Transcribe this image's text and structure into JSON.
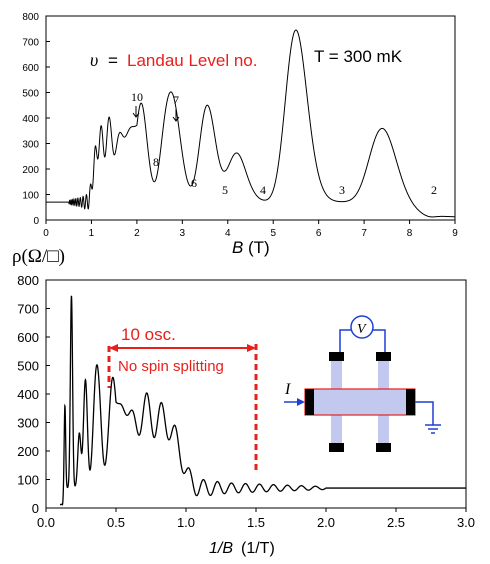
{
  "colors": {
    "curve": "#000000",
    "annotation_red": "#e8201c",
    "hallbar_fill": "#c3c8ee",
    "hallbar_outline": "#e8201c",
    "contact": "#000000",
    "wire_blue": "#1f3fd6"
  },
  "chart_data": [
    {
      "type": "line",
      "name": "upper-panel",
      "xlabel": "B (T)",
      "xlabel_var": "B",
      "xlabel_unit": "(T)",
      "ylabel": "ρ(Ω/□)",
      "xlim": [
        0,
        9
      ],
      "ylim": [
        0,
        800
      ],
      "xticks": [
        "0",
        "1",
        "2",
        "3",
        "4",
        "5",
        "6",
        "7",
        "8",
        "9"
      ],
      "yticks": [
        "0",
        "100",
        "200",
        "300",
        "400",
        "500",
        "600",
        "700",
        "800"
      ],
      "annotations": {
        "nu_symbol": "υ",
        "equals": "=",
        "landau_label": "Landau Level no.",
        "temperature": "T = 300 mK",
        "level_labels": [
          {
            "text": "10",
            "arrow": true
          },
          {
            "text": "7",
            "arrow": true
          },
          {
            "text": "8"
          },
          {
            "text": "6"
          },
          {
            "text": "5"
          },
          {
            "text": "4"
          },
          {
            "text": "3"
          },
          {
            "text": "2"
          }
        ]
      },
      "peaks": [
        {
          "B": 5.5,
          "rho": 695
        },
        {
          "B": 7.4,
          "rho": 310
        },
        {
          "B": 4.2,
          "rho": 210
        },
        {
          "B": 3.55,
          "rho": 400
        },
        {
          "B": 2.85,
          "rho": 275
        },
        {
          "B": 2.65,
          "rho": 310
        },
        {
          "B": 2.1,
          "rho": 400
        },
        {
          "B": 1.75,
          "rho": 345
        },
        {
          "B": 1.45,
          "rho": 280
        },
        {
          "B": 1.25,
          "rho": 215
        },
        {
          "B": 1.1,
          "rho": 185
        }
      ]
    },
    {
      "type": "line",
      "name": "lower-panel",
      "xlabel": "1/B (1/T)",
      "xlabel_var": "1/B",
      "xlabel_unit": "(1/T)",
      "xlim": [
        0,
        3.0
      ],
      "ylim": [
        0,
        800
      ],
      "xticks": [
        "0.0",
        "0.5",
        "1.0",
        "1.5",
        "2.0",
        "2.5",
        "3.0"
      ],
      "yticks": [
        "0",
        "100",
        "200",
        "300",
        "400",
        "500",
        "600",
        "700",
        "800"
      ],
      "annotations": {
        "osc_count": "10 osc.",
        "spin_note": "No spin splitting",
        "current_label": "I",
        "voltmeter_label": "V",
        "bracket_from_x": 0.45,
        "bracket_to_x": 1.5
      }
    }
  ]
}
